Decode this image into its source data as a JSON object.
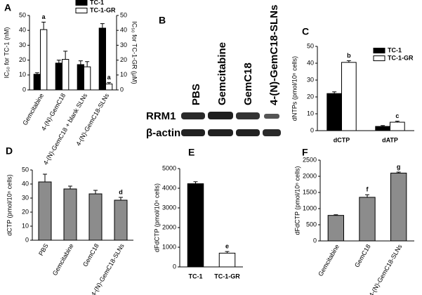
{
  "chart_data": [
    {
      "type": "bar",
      "panel": "A",
      "ylabel": "IC₅₀ for TC-1 (nM)",
      "y2label": "IC₅₀ for TC-1-GR (μM)",
      "categories": [
        "Gemcitabine",
        "4-(N)-GemC18",
        "4-(N)-GemC18 + blank SLNs",
        "4-(N)-GemC18-SLNs"
      ],
      "series": [
        {
          "name": "TC-1",
          "color": "#000000",
          "values": [
            10.5,
            18,
            17,
            41.5
          ],
          "errors": [
            1,
            2,
            2.5,
            3
          ],
          "annotations": [
            null,
            null,
            null,
            null
          ]
        },
        {
          "name": "TC-1-GR",
          "color": "#ffffff",
          "axis": "y2",
          "values": [
            40.5,
            20.5,
            15.5,
            4
          ],
          "errors": [
            5,
            5.5,
            3.5,
            1
          ],
          "annotations": [
            "a",
            null,
            null,
            "a"
          ]
        }
      ],
      "ylim": [
        0,
        50
      ],
      "yticks": [
        0,
        10,
        20,
        30,
        40,
        50
      ],
      "y2lim": [
        0,
        50
      ],
      "y2ticks": [
        0,
        10,
        20,
        30,
        40,
        50
      ],
      "legend": "top-right"
    },
    {
      "type": "bar",
      "panel": "C",
      "ylabel": "dNTPs (pmol/10⁶ cells)",
      "categories": [
        "dCTP",
        "dATP"
      ],
      "series": [
        {
          "name": "TC-1",
          "color": "#000000",
          "values": [
            22,
            2.5
          ],
          "errors": [
            1,
            0.5
          ],
          "annotations": [
            null,
            null
          ]
        },
        {
          "name": "TC-1-GR",
          "color": "#ffffff",
          "values": [
            40.5,
            5
          ],
          "errors": [
            1,
            0.6
          ],
          "annotations": [
            "b",
            "c"
          ]
        }
      ],
      "ylim": [
        0,
        50
      ],
      "yticks": [
        0,
        10,
        20,
        30,
        40,
        50
      ],
      "legend": "top-right"
    },
    {
      "type": "bar",
      "panel": "D",
      "ylabel": "dCTP (pmol/10⁶ cells)",
      "categories": [
        "PBS",
        "Gemcitabine",
        "GemC18",
        "4-(N)-GemC18-SLNs"
      ],
      "values": [
        41.5,
        36.5,
        33,
        28.5
      ],
      "errors": [
        5.5,
        2,
        2.5,
        2
      ],
      "annotations": [
        null,
        null,
        null,
        "d"
      ],
      "color": "#8c8c8c",
      "ylim": [
        0,
        50
      ],
      "yticks": [
        0,
        10,
        20,
        30,
        40,
        50
      ]
    },
    {
      "type": "bar",
      "panel": "E",
      "ylabel": "dFdCTP (pmol/10⁶ cells)",
      "categories": [
        "TC-1",
        "TC-1-GR"
      ],
      "values": [
        4230,
        700
      ],
      "errors": [
        100,
        80
      ],
      "annotations": [
        null,
        "e"
      ],
      "colors": [
        "#000000",
        "#ffffff"
      ],
      "ylim": [
        0,
        5000
      ],
      "yticks": [
        0,
        1000,
        2000,
        3000,
        4000,
        5000
      ]
    },
    {
      "type": "bar",
      "panel": "F",
      "ylabel": "dFdCTP (pmol/10⁶ cells)",
      "categories": [
        "Gemcitabine",
        "GemC18",
        "4-(N)-GemC18-SLNs"
      ],
      "values": [
        790,
        1350,
        2100
      ],
      "errors": [
        20,
        80,
        30
      ],
      "annotations": [
        null,
        "f",
        "g"
      ],
      "color": "#8c8c8c",
      "ylim": [
        0,
        2500
      ],
      "yticks": [
        0,
        500,
        1000,
        1500,
        2000,
        2500
      ]
    }
  ],
  "blot": {
    "panel": "B",
    "lanes": [
      "PBS",
      "Gemcitabine",
      "GemC18",
      "4-(N)-GemC18-SLNs"
    ],
    "bands": [
      "RRM1",
      "β-actin"
    ]
  }
}
